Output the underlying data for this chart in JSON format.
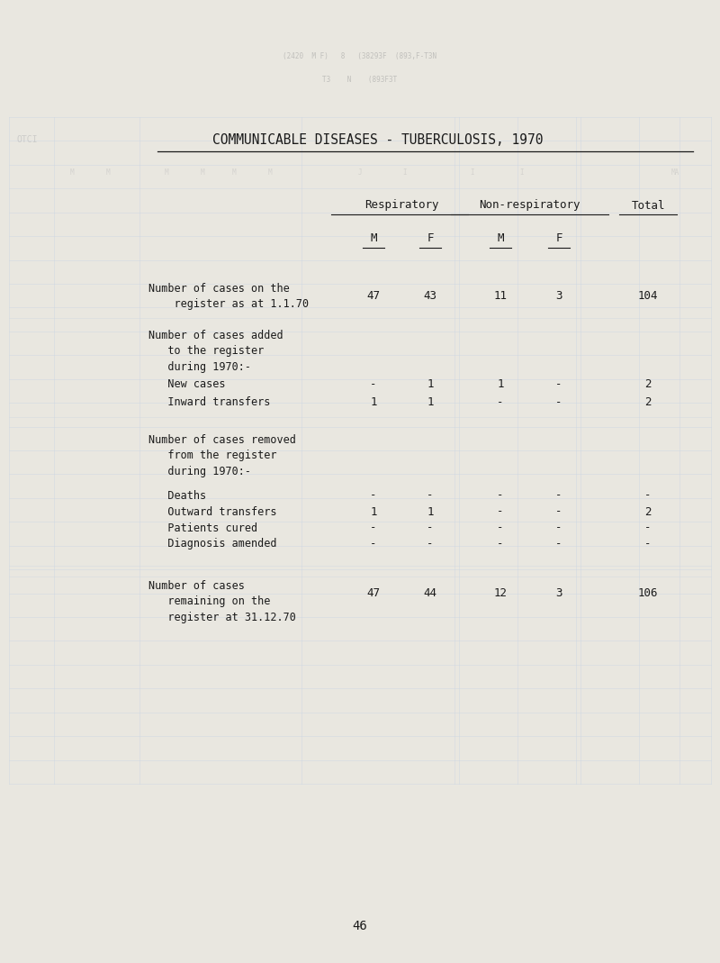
{
  "title": "COMMUNICABLE DISEASES - TUBERCULOSIS, 1970",
  "bg_color": "#e9e7e0",
  "text_color": "#1a1a1a",
  "page_number": "46",
  "rows": [
    {
      "label": [
        "Number of cases on the",
        "    register as at 1.1.70"
      ],
      "values": [
        "47",
        "43",
        "11",
        "3",
        "104"
      ],
      "indent": false
    },
    {
      "label": [
        "Number of cases added",
        "   to the register",
        "   during 1970:-"
      ],
      "values": [
        "",
        "",
        "",
        "",
        ""
      ],
      "indent": false
    },
    {
      "label": [
        "   New cases"
      ],
      "values": [
        "-",
        "1",
        "1",
        "-",
        "2"
      ],
      "indent": true
    },
    {
      "label": [
        "   Inward transfers"
      ],
      "values": [
        "1",
        "1",
        "-",
        "-",
        "2"
      ],
      "indent": true
    },
    {
      "label": [
        "Number of cases removed",
        "   from the register",
        "   during 1970:-"
      ],
      "values": [
        "",
        "",
        "",
        "",
        ""
      ],
      "indent": false
    },
    {
      "label": [
        "   Deaths"
      ],
      "values": [
        "-",
        "-",
        "-",
        "-",
        "-"
      ],
      "indent": true
    },
    {
      "label": [
        "   Outward transfers"
      ],
      "values": [
        "1",
        "1",
        "-",
        "-",
        "2"
      ],
      "indent": true
    },
    {
      "label": [
        "   Patients cured"
      ],
      "values": [
        "-",
        "-",
        "-",
        "-",
        "-"
      ],
      "indent": true
    },
    {
      "label": [
        "   Diagnosis amended"
      ],
      "values": [
        "-",
        "-",
        "-",
        "-",
        "-"
      ],
      "indent": true
    },
    {
      "label": [
        "Number of cases",
        "   remaining on the",
        "   register at 31.12.70"
      ],
      "values": [
        "47",
        "44",
        "12",
        "3",
        "106"
      ],
      "indent": false
    }
  ]
}
